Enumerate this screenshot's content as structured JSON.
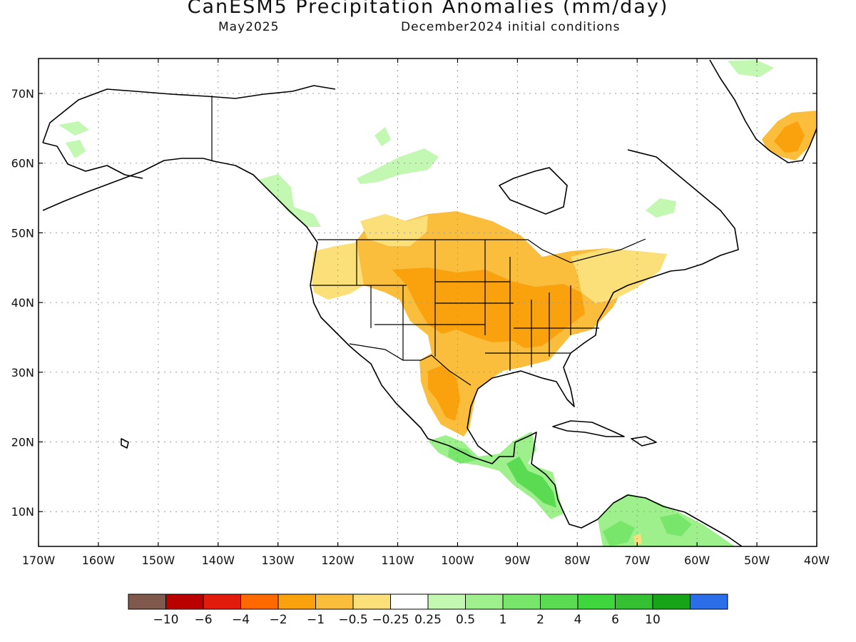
{
  "header": {
    "title": "CanESM5 Precipitation Anomalies (mm/day)",
    "month": "May2025",
    "initial_conditions": "December2024 initial conditions"
  },
  "map": {
    "lat_labels": [
      "70N",
      "60N",
      "50N",
      "40N",
      "30N",
      "20N",
      "10N"
    ],
    "lon_labels": [
      "170W",
      "160W",
      "150W",
      "140W",
      "130W",
      "120W",
      "110W",
      "100W",
      "90W",
      "80W",
      "70W",
      "60W",
      "50W",
      "40W"
    ],
    "anomaly_regions": [
      {
        "region": "Central United States",
        "category": "-2 to -1"
      },
      {
        "region": "Northern Plains and Rockies",
        "category": "-1 to -0.5"
      },
      {
        "region": "Northern Mexico",
        "category": "-1 to -0.5"
      },
      {
        "region": "Pacific Northwest",
        "category": "-0.5 to -0.25"
      },
      {
        "region": "Northeast United States",
        "category": "-0.5 to -0.25"
      },
      {
        "region": "Southern Greenland",
        "category": "-1 to -0.5"
      },
      {
        "region": "Southern Mexico and Central America",
        "category": "0.5 to 2"
      },
      {
        "region": "Northern South America",
        "category": "0.5 to 2"
      },
      {
        "region": "Northern Canada patches",
        "category": "0.25 to 0.5"
      }
    ]
  },
  "colorbar": {
    "colors": [
      "#7f5a4c",
      "#bb0000",
      "#e21c0c",
      "#ff6a00",
      "#f9a20e",
      "#fbbd3c",
      "#fbe07a",
      "#ffffff",
      "#c3f8b3",
      "#9ef08c",
      "#78e56b",
      "#5bdb52",
      "#3fd53d",
      "#35c034",
      "#17a418",
      "#2a6ee8"
    ],
    "labels": [
      "−10",
      "−6",
      "−4",
      "−2",
      "−1",
      "−0.5",
      "−0.25",
      "0.25",
      "0.5",
      "1",
      "2",
      "4",
      "6",
      "10"
    ]
  }
}
